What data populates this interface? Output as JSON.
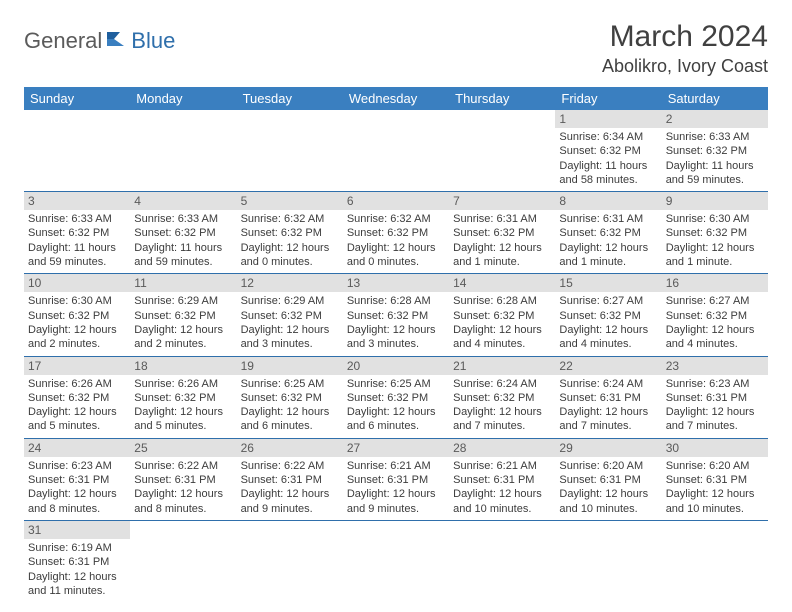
{
  "logo": {
    "part1": "General",
    "part2": "Blue"
  },
  "title": "March 2024",
  "location": "Abolikro, Ivory Coast",
  "colors": {
    "header_bg": "#3a7fc0",
    "header_text": "#ffffff",
    "daynum_bg": "#e1e1e1",
    "border": "#2f6fab",
    "logo_gray": "#5b5b5b",
    "logo_blue": "#2f6fab"
  },
  "weekdays": [
    "Sunday",
    "Monday",
    "Tuesday",
    "Wednesday",
    "Thursday",
    "Friday",
    "Saturday"
  ],
  "weeks": [
    [
      null,
      null,
      null,
      null,
      null,
      {
        "n": "1",
        "sr": "Sunrise: 6:34 AM",
        "ss": "Sunset: 6:32 PM",
        "dl": "Daylight: 11 hours and 58 minutes."
      },
      {
        "n": "2",
        "sr": "Sunrise: 6:33 AM",
        "ss": "Sunset: 6:32 PM",
        "dl": "Daylight: 11 hours and 59 minutes."
      }
    ],
    [
      {
        "n": "3",
        "sr": "Sunrise: 6:33 AM",
        "ss": "Sunset: 6:32 PM",
        "dl": "Daylight: 11 hours and 59 minutes."
      },
      {
        "n": "4",
        "sr": "Sunrise: 6:33 AM",
        "ss": "Sunset: 6:32 PM",
        "dl": "Daylight: 11 hours and 59 minutes."
      },
      {
        "n": "5",
        "sr": "Sunrise: 6:32 AM",
        "ss": "Sunset: 6:32 PM",
        "dl": "Daylight: 12 hours and 0 minutes."
      },
      {
        "n": "6",
        "sr": "Sunrise: 6:32 AM",
        "ss": "Sunset: 6:32 PM",
        "dl": "Daylight: 12 hours and 0 minutes."
      },
      {
        "n": "7",
        "sr": "Sunrise: 6:31 AM",
        "ss": "Sunset: 6:32 PM",
        "dl": "Daylight: 12 hours and 1 minute."
      },
      {
        "n": "8",
        "sr": "Sunrise: 6:31 AM",
        "ss": "Sunset: 6:32 PM",
        "dl": "Daylight: 12 hours and 1 minute."
      },
      {
        "n": "9",
        "sr": "Sunrise: 6:30 AM",
        "ss": "Sunset: 6:32 PM",
        "dl": "Daylight: 12 hours and 1 minute."
      }
    ],
    [
      {
        "n": "10",
        "sr": "Sunrise: 6:30 AM",
        "ss": "Sunset: 6:32 PM",
        "dl": "Daylight: 12 hours and 2 minutes."
      },
      {
        "n": "11",
        "sr": "Sunrise: 6:29 AM",
        "ss": "Sunset: 6:32 PM",
        "dl": "Daylight: 12 hours and 2 minutes."
      },
      {
        "n": "12",
        "sr": "Sunrise: 6:29 AM",
        "ss": "Sunset: 6:32 PM",
        "dl": "Daylight: 12 hours and 3 minutes."
      },
      {
        "n": "13",
        "sr": "Sunrise: 6:28 AM",
        "ss": "Sunset: 6:32 PM",
        "dl": "Daylight: 12 hours and 3 minutes."
      },
      {
        "n": "14",
        "sr": "Sunrise: 6:28 AM",
        "ss": "Sunset: 6:32 PM",
        "dl": "Daylight: 12 hours and 4 minutes."
      },
      {
        "n": "15",
        "sr": "Sunrise: 6:27 AM",
        "ss": "Sunset: 6:32 PM",
        "dl": "Daylight: 12 hours and 4 minutes."
      },
      {
        "n": "16",
        "sr": "Sunrise: 6:27 AM",
        "ss": "Sunset: 6:32 PM",
        "dl": "Daylight: 12 hours and 4 minutes."
      }
    ],
    [
      {
        "n": "17",
        "sr": "Sunrise: 6:26 AM",
        "ss": "Sunset: 6:32 PM",
        "dl": "Daylight: 12 hours and 5 minutes."
      },
      {
        "n": "18",
        "sr": "Sunrise: 6:26 AM",
        "ss": "Sunset: 6:32 PM",
        "dl": "Daylight: 12 hours and 5 minutes."
      },
      {
        "n": "19",
        "sr": "Sunrise: 6:25 AM",
        "ss": "Sunset: 6:32 PM",
        "dl": "Daylight: 12 hours and 6 minutes."
      },
      {
        "n": "20",
        "sr": "Sunrise: 6:25 AM",
        "ss": "Sunset: 6:32 PM",
        "dl": "Daylight: 12 hours and 6 minutes."
      },
      {
        "n": "21",
        "sr": "Sunrise: 6:24 AM",
        "ss": "Sunset: 6:32 PM",
        "dl": "Daylight: 12 hours and 7 minutes."
      },
      {
        "n": "22",
        "sr": "Sunrise: 6:24 AM",
        "ss": "Sunset: 6:31 PM",
        "dl": "Daylight: 12 hours and 7 minutes."
      },
      {
        "n": "23",
        "sr": "Sunrise: 6:23 AM",
        "ss": "Sunset: 6:31 PM",
        "dl": "Daylight: 12 hours and 7 minutes."
      }
    ],
    [
      {
        "n": "24",
        "sr": "Sunrise: 6:23 AM",
        "ss": "Sunset: 6:31 PM",
        "dl": "Daylight: 12 hours and 8 minutes."
      },
      {
        "n": "25",
        "sr": "Sunrise: 6:22 AM",
        "ss": "Sunset: 6:31 PM",
        "dl": "Daylight: 12 hours and 8 minutes."
      },
      {
        "n": "26",
        "sr": "Sunrise: 6:22 AM",
        "ss": "Sunset: 6:31 PM",
        "dl": "Daylight: 12 hours and 9 minutes."
      },
      {
        "n": "27",
        "sr": "Sunrise: 6:21 AM",
        "ss": "Sunset: 6:31 PM",
        "dl": "Daylight: 12 hours and 9 minutes."
      },
      {
        "n": "28",
        "sr": "Sunrise: 6:21 AM",
        "ss": "Sunset: 6:31 PM",
        "dl": "Daylight: 12 hours and 10 minutes."
      },
      {
        "n": "29",
        "sr": "Sunrise: 6:20 AM",
        "ss": "Sunset: 6:31 PM",
        "dl": "Daylight: 12 hours and 10 minutes."
      },
      {
        "n": "30",
        "sr": "Sunrise: 6:20 AM",
        "ss": "Sunset: 6:31 PM",
        "dl": "Daylight: 12 hours and 10 minutes."
      }
    ],
    [
      {
        "n": "31",
        "sr": "Sunrise: 6:19 AM",
        "ss": "Sunset: 6:31 PM",
        "dl": "Daylight: 12 hours and 11 minutes."
      },
      null,
      null,
      null,
      null,
      null,
      null
    ]
  ]
}
